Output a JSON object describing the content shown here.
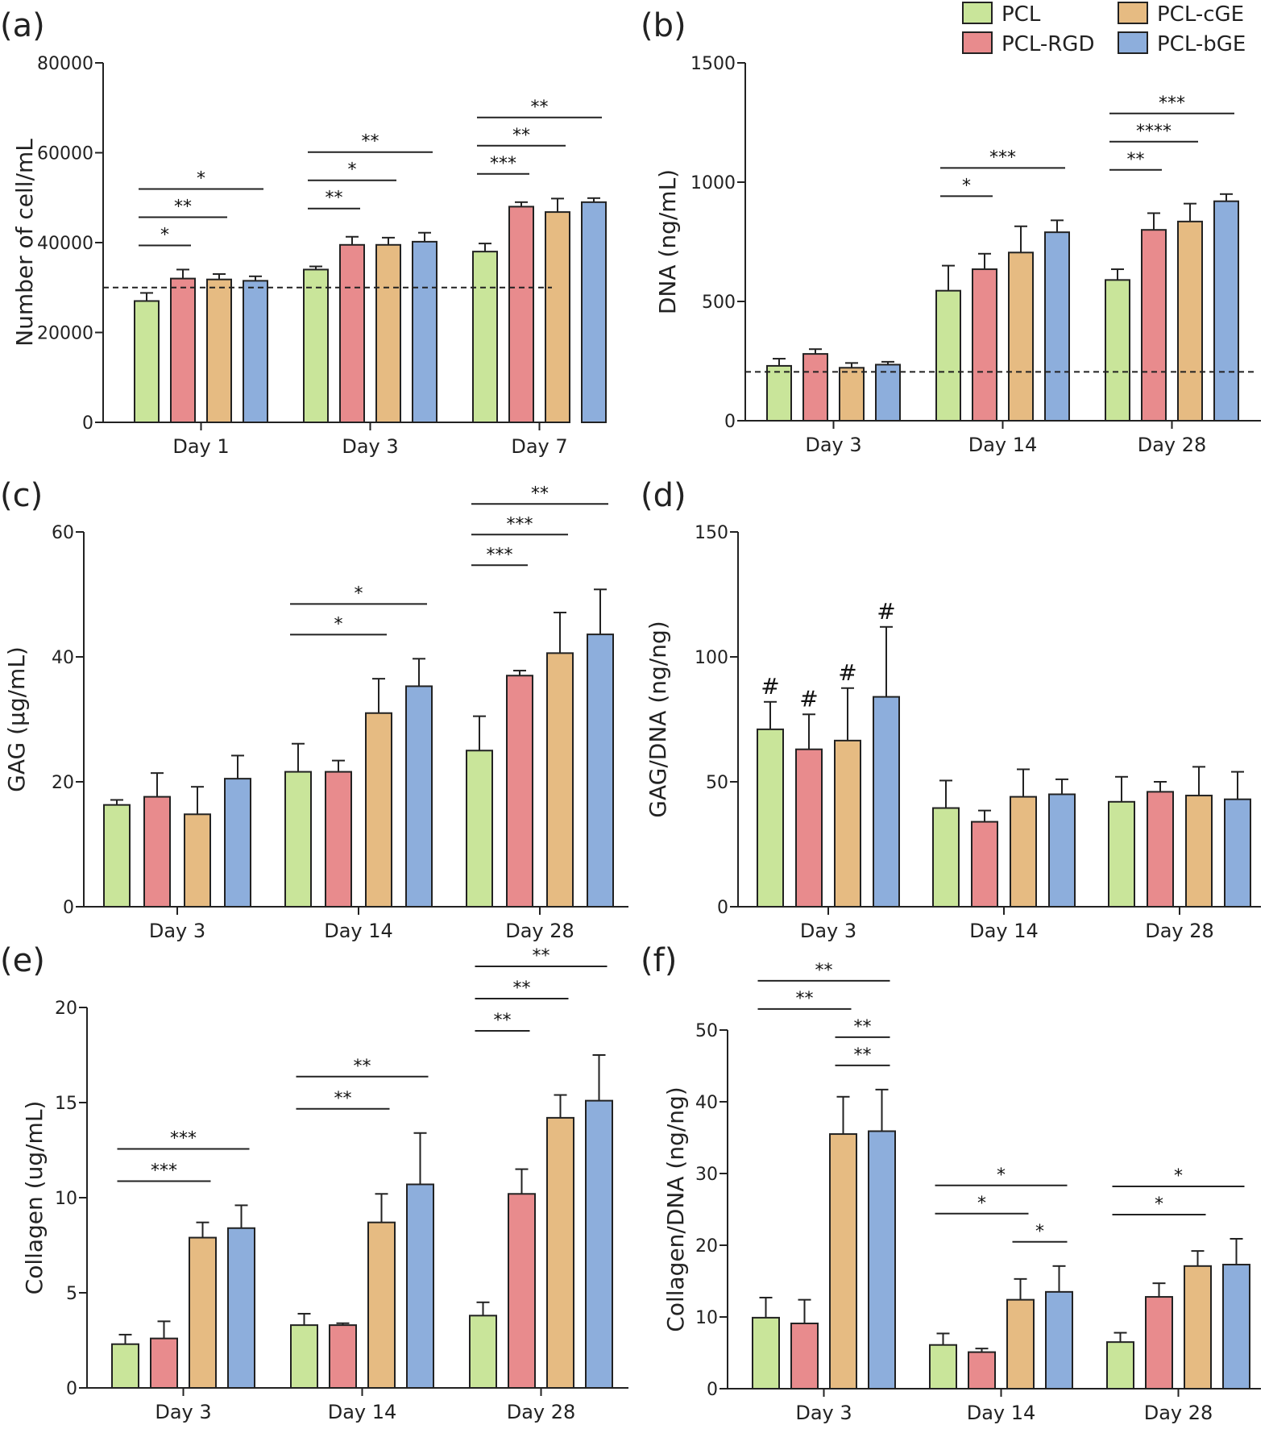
{
  "legend": [
    {
      "name": "PCL",
      "color": "#c9e59a"
    },
    {
      "name": "PCL-RGD",
      "color": "#e88b8d"
    },
    {
      "name": "PCL-cGE",
      "color": "#e6bb82"
    },
    {
      "name": "PCL-bGE",
      "color": "#8daedc"
    }
  ],
  "chart_data": [
    {
      "panel": "(a)",
      "type": "bar",
      "ylabel": "Number of cell/mL",
      "ylim": [
        0,
        80000
      ],
      "yticks": [
        "0",
        "20000",
        "40000",
        "60000",
        "80000"
      ],
      "categories": [
        "Day 1",
        "Day 3",
        "Day 7"
      ],
      "reference_line": 30000,
      "series": [
        {
          "name": "PCL",
          "values": [
            27000,
            34000,
            38000
          ],
          "errors": [
            1800,
            700,
            1800
          ]
        },
        {
          "name": "PCL-RGD",
          "values": [
            32000,
            39500,
            48000
          ],
          "errors": [
            2000,
            1800,
            1000
          ]
        },
        {
          "name": "PCL-cGE",
          "values": [
            31800,
            39500,
            46800
          ],
          "errors": [
            1200,
            1600,
            3000
          ]
        },
        {
          "name": "PCL-bGE",
          "values": [
            31500,
            40200,
            49000
          ],
          "errors": [
            1000,
            2000,
            900
          ]
        }
      ],
      "significance": [
        {
          "group": 0,
          "from": 0,
          "to": 1,
          "label": "*"
        },
        {
          "group": 0,
          "from": 0,
          "to": 2,
          "label": "**"
        },
        {
          "group": 0,
          "from": 0,
          "to": 3,
          "label": "*"
        },
        {
          "group": 1,
          "from": 0,
          "to": 1,
          "label": "**"
        },
        {
          "group": 1,
          "from": 0,
          "to": 2,
          "label": "*"
        },
        {
          "group": 1,
          "from": 0,
          "to": 3,
          "label": "**"
        },
        {
          "group": 2,
          "from": 0,
          "to": 1,
          "label": "***"
        },
        {
          "group": 2,
          "from": 0,
          "to": 2,
          "label": "**"
        },
        {
          "group": 2,
          "from": 0,
          "to": 3,
          "label": "**"
        }
      ]
    },
    {
      "panel": "(b)",
      "type": "bar",
      "ylabel": "DNA (ng/mL)",
      "ylim": [
        0,
        1500
      ],
      "yticks": [
        "0",
        "500",
        "1000",
        "1500"
      ],
      "categories": [
        "Day 3",
        "Day 14",
        "Day 28"
      ],
      "reference_line": 205,
      "series": [
        {
          "name": "PCL",
          "values": [
            230,
            545,
            590
          ],
          "errors": [
            30,
            105,
            45
          ]
        },
        {
          "name": "PCL-RGD",
          "values": [
            280,
            635,
            800
          ],
          "errors": [
            20,
            65,
            70
          ]
        },
        {
          "name": "PCL-cGE",
          "values": [
            222,
            705,
            835
          ],
          "errors": [
            20,
            110,
            75
          ]
        },
        {
          "name": "PCL-bGE",
          "values": [
            235,
            790,
            920
          ],
          "errors": [
            12,
            50,
            30
          ]
        }
      ],
      "significance": [
        {
          "group": 1,
          "from": 0,
          "to": 1,
          "label": "*"
        },
        {
          "group": 1,
          "from": 0,
          "to": 3,
          "label": "***"
        },
        {
          "group": 2,
          "from": 0,
          "to": 1,
          "label": "**"
        },
        {
          "group": 2,
          "from": 0,
          "to": 2,
          "label": "****"
        },
        {
          "group": 2,
          "from": 0,
          "to": 3,
          "label": "***"
        }
      ]
    },
    {
      "panel": "(c)",
      "type": "bar",
      "ylabel": "GAG (µg/mL)",
      "ylim": [
        0,
        60
      ],
      "yticks": [
        "0",
        "20",
        "40",
        "60"
      ],
      "categories": [
        "Day 3",
        "Day 14",
        "Day 28"
      ],
      "series": [
        {
          "name": "PCL",
          "values": [
            16.3,
            21.6,
            25.0
          ],
          "errors": [
            0.8,
            4.5,
            5.5
          ]
        },
        {
          "name": "PCL-RGD",
          "values": [
            17.6,
            21.6,
            37.0
          ],
          "errors": [
            3.8,
            1.8,
            0.8
          ]
        },
        {
          "name": "PCL-cGE",
          "values": [
            14.8,
            31.0,
            40.6
          ],
          "errors": [
            4.4,
            5.5,
            6.5
          ]
        },
        {
          "name": "PCL-bGE",
          "values": [
            20.5,
            35.3,
            43.6
          ],
          "errors": [
            3.7,
            4.4,
            7.2
          ]
        }
      ],
      "significance": [
        {
          "group": 1,
          "from": 0,
          "to": 2,
          "label": "*"
        },
        {
          "group": 1,
          "from": 0,
          "to": 3,
          "label": "*"
        },
        {
          "group": 2,
          "from": 0,
          "to": 1,
          "label": "***"
        },
        {
          "group": 2,
          "from": 0,
          "to": 2,
          "label": "***"
        },
        {
          "group": 2,
          "from": 0,
          "to": 3,
          "label": "**"
        }
      ]
    },
    {
      "panel": "(d)",
      "type": "bar",
      "ylabel": "GAG/DNA (ng/ng)",
      "ylim": [
        0,
        150
      ],
      "yticks": [
        "0",
        "50",
        "100",
        "150"
      ],
      "categories": [
        "Day 3",
        "Day 14",
        "Day 28"
      ],
      "series": [
        {
          "name": "PCL",
          "values": [
            71,
            39.5,
            42
          ],
          "errors": [
            11,
            11,
            10
          ]
        },
        {
          "name": "PCL-RGD",
          "values": [
            63,
            34,
            46
          ],
          "errors": [
            14,
            4.5,
            4
          ]
        },
        {
          "name": "PCL-cGE",
          "values": [
            66.5,
            44,
            44.5
          ],
          "errors": [
            21,
            11,
            11.5
          ]
        },
        {
          "name": "PCL-bGE",
          "values": [
            84,
            45,
            43
          ],
          "errors": [
            28,
            6,
            11
          ]
        }
      ],
      "annotations": [
        {
          "group": 0,
          "bar": 0,
          "label": "#"
        },
        {
          "group": 0,
          "bar": 1,
          "label": "#"
        },
        {
          "group": 0,
          "bar": 2,
          "label": "#"
        },
        {
          "group": 0,
          "bar": 3,
          "label": "#"
        }
      ]
    },
    {
      "panel": "(e)",
      "type": "bar",
      "ylabel": "Collagen (ug/mL)",
      "ylim": [
        0,
        20
      ],
      "yticks": [
        "0",
        "5",
        "10",
        "15",
        "20"
      ],
      "categories": [
        "Day 3",
        "Day 14",
        "Day 28"
      ],
      "series": [
        {
          "name": "PCL",
          "values": [
            2.3,
            3.3,
            3.8
          ],
          "errors": [
            0.5,
            0.6,
            0.7
          ]
        },
        {
          "name": "PCL-RGD",
          "values": [
            2.6,
            3.3,
            10.2
          ],
          "errors": [
            0.9,
            0.1,
            1.3
          ]
        },
        {
          "name": "PCL-cGE",
          "values": [
            7.9,
            8.7,
            14.2
          ],
          "errors": [
            0.8,
            1.5,
            1.2
          ]
        },
        {
          "name": "PCL-bGE",
          "values": [
            8.4,
            10.7,
            15.1
          ],
          "errors": [
            1.2,
            2.7,
            2.4
          ]
        }
      ],
      "significance": [
        {
          "group": 0,
          "from": 0,
          "to": 2,
          "label": "***"
        },
        {
          "group": 0,
          "from": 0,
          "to": 3,
          "label": "***"
        },
        {
          "group": 1,
          "from": 0,
          "to": 2,
          "label": "**"
        },
        {
          "group": 1,
          "from": 0,
          "to": 3,
          "label": "**"
        },
        {
          "group": 2,
          "from": 0,
          "to": 1,
          "label": "**"
        },
        {
          "group": 2,
          "from": 0,
          "to": 2,
          "label": "**"
        },
        {
          "group": 2,
          "from": 0,
          "to": 3,
          "label": "**"
        }
      ]
    },
    {
      "panel": "(f)",
      "type": "bar",
      "ylabel": "Collagen/DNA (ng/ng)",
      "ylim": [
        0,
        50
      ],
      "yticks": [
        "0",
        "10",
        "20",
        "30",
        "40",
        "50"
      ],
      "categories": [
        "Day 3",
        "Day 14",
        "Day 28"
      ],
      "series": [
        {
          "name": "PCL",
          "values": [
            9.9,
            6.1,
            6.5
          ],
          "errors": [
            2.8,
            1.6,
            1.3
          ]
        },
        {
          "name": "PCL-RGD",
          "values": [
            9.1,
            5.1,
            12.8
          ],
          "errors": [
            3.3,
            0.5,
            1.9
          ]
        },
        {
          "name": "PCL-cGE",
          "values": [
            35.5,
            12.4,
            17.1
          ],
          "errors": [
            5.2,
            2.9,
            2.1
          ]
        },
        {
          "name": "PCL-bGE",
          "values": [
            35.9,
            13.5,
            17.3
          ],
          "errors": [
            5.8,
            3.6,
            3.6
          ]
        }
      ],
      "significance": [
        {
          "group": 0,
          "from": 2,
          "to": 3,
          "label": "**"
        },
        {
          "group": 0,
          "from": 2,
          "to": 3,
          "label": "**"
        },
        {
          "group": 0,
          "from": 0,
          "to": 2,
          "label": "**"
        },
        {
          "group": 0,
          "from": 0,
          "to": 3,
          "label": "**"
        },
        {
          "group": 1,
          "from": 2,
          "to": 3,
          "label": "*"
        },
        {
          "group": 1,
          "from": 0,
          "to": 2,
          "label": "*"
        },
        {
          "group": 1,
          "from": 0,
          "to": 3,
          "label": "*"
        },
        {
          "group": 2,
          "from": 0,
          "to": 2,
          "label": "*"
        },
        {
          "group": 2,
          "from": 0,
          "to": 3,
          "label": "*"
        }
      ]
    }
  ]
}
